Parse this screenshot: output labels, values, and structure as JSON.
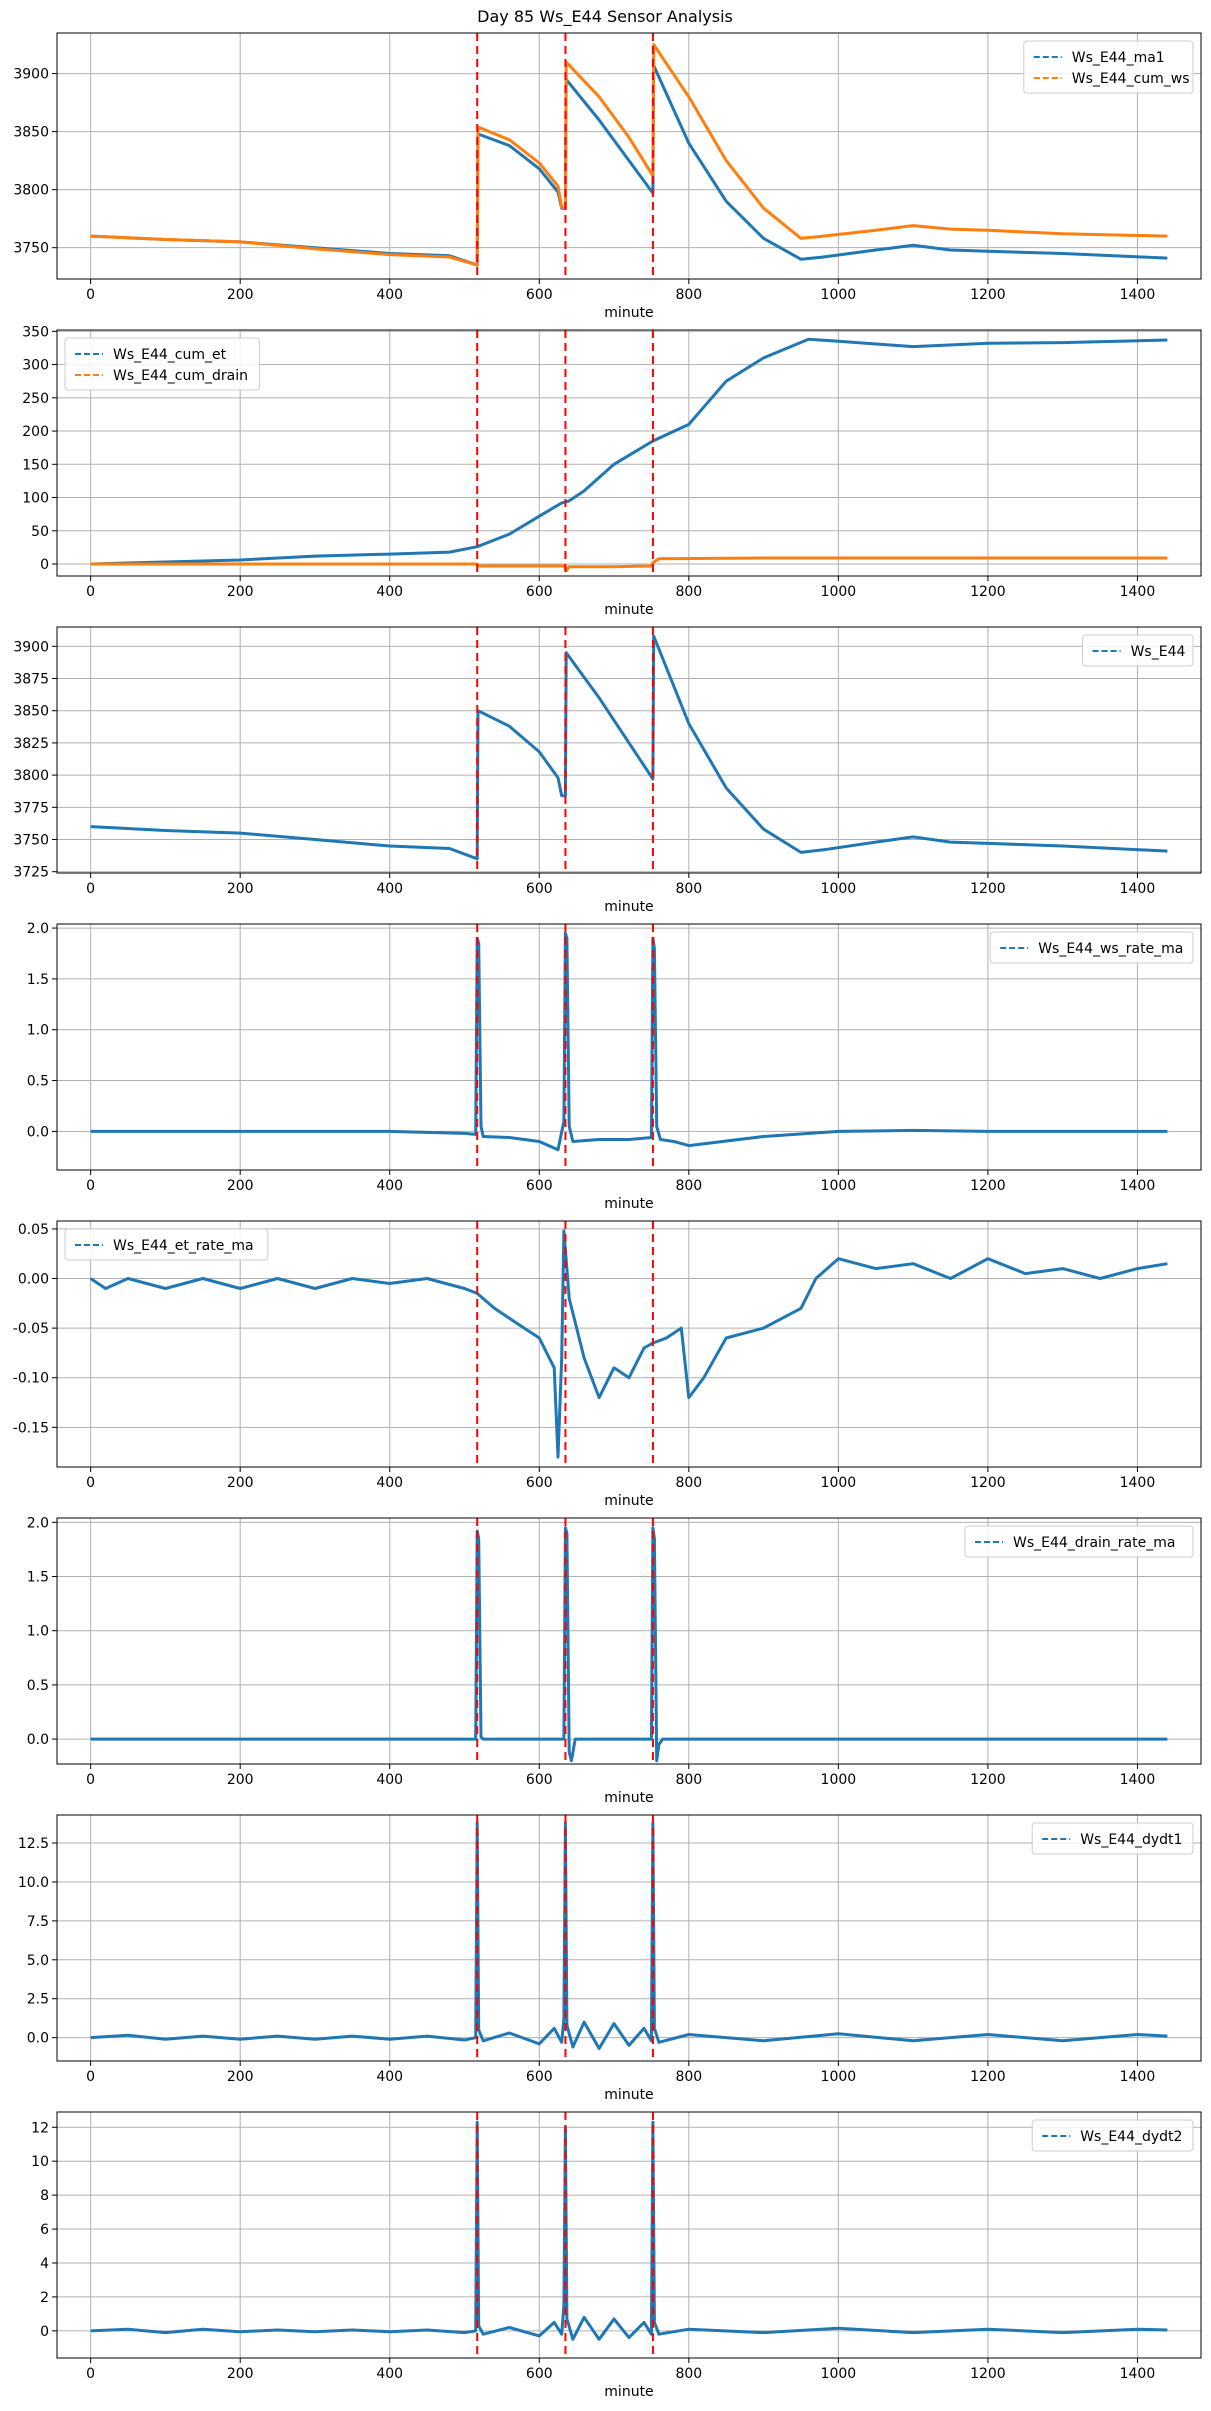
{
  "figure_title": "Day 85 Ws_E44 Sensor Analysis",
  "colors": {
    "blue": "#1f77b4",
    "orange": "#ff7f0e",
    "event": "#ff0000",
    "grid": "#b0b0b0"
  },
  "chart_data": [
    {
      "type": "line",
      "xlabel": "minute",
      "xlim": [
        -45,
        1485
      ],
      "ylim": [
        3723,
        3935
      ],
      "xticks": [
        0,
        200,
        400,
        600,
        800,
        1000,
        1200,
        1400
      ],
      "yticks": [
        3750,
        3800,
        3850,
        3900
      ],
      "legend_loc": "top-right",
      "event_lines": [
        517,
        635,
        752
      ],
      "series": [
        {
          "name": "Ws_E44_ma1",
          "color": "#1f77b4",
          "x": [
            0,
            100,
            200,
            300,
            400,
            480,
            517,
            518,
            560,
            600,
            625,
            630,
            635,
            636,
            680,
            720,
            752,
            753,
            800,
            850,
            900,
            950,
            980,
            1050,
            1100,
            1150,
            1200,
            1300,
            1440
          ],
          "y": [
            3760,
            3757,
            3755,
            3750,
            3745,
            3743,
            3735,
            3848,
            3838,
            3818,
            3798,
            3784,
            3784,
            3895,
            3860,
            3825,
            3797,
            3907,
            3840,
            3790,
            3758,
            3740,
            3742,
            3748,
            3752,
            3748,
            3747,
            3745,
            3741
          ]
        },
        {
          "name": "Ws_E44_cum_ws",
          "color": "#ff7f0e",
          "x": [
            0,
            100,
            200,
            300,
            400,
            480,
            517,
            518,
            560,
            600,
            625,
            630,
            635,
            636,
            680,
            720,
            752,
            753,
            800,
            850,
            900,
            950,
            980,
            1050,
            1100,
            1150,
            1200,
            1300,
            1440
          ],
          "y": [
            3760,
            3757,
            3755,
            3749,
            3744,
            3742,
            3735,
            3854,
            3843,
            3823,
            3803,
            3785,
            3784,
            3910,
            3880,
            3845,
            3812,
            3925,
            3880,
            3825,
            3784,
            3758,
            3760,
            3765,
            3769,
            3766,
            3765,
            3762,
            3760
          ]
        }
      ]
    },
    {
      "type": "line",
      "xlabel": "minute",
      "xlim": [
        -45,
        1485
      ],
      "ylim": [
        -18,
        352
      ],
      "xticks": [
        0,
        200,
        400,
        600,
        800,
        1000,
        1200,
        1400
      ],
      "yticks": [
        0,
        50,
        100,
        150,
        200,
        250,
        300,
        350
      ],
      "legend_loc": "top-left",
      "event_lines": [
        517,
        635,
        752
      ],
      "series": [
        {
          "name": "Ws_E44_cum_et",
          "color": "#1f77b4",
          "x": [
            0,
            100,
            200,
            300,
            400,
            480,
            517,
            560,
            600,
            630,
            640,
            660,
            700,
            752,
            800,
            850,
            900,
            960,
            1000,
            1100,
            1200,
            1300,
            1440
          ],
          "y": [
            0,
            3,
            6,
            12,
            15,
            18,
            26,
            45,
            72,
            92,
            95,
            110,
            150,
            185,
            210,
            275,
            310,
            338,
            335,
            327,
            332,
            333,
            337
          ]
        },
        {
          "name": "Ws_E44_cum_drain",
          "color": "#ff7f0e",
          "x": [
            0,
            100,
            200,
            300,
            400,
            500,
            517,
            518,
            600,
            634,
            636,
            640,
            700,
            750,
            752,
            760,
            900,
            1100,
            1440
          ],
          "y": [
            0,
            0,
            0,
            0,
            0,
            0,
            0,
            -3,
            -3,
            -3,
            -10,
            -4,
            -4,
            -3,
            2,
            8,
            9,
            9,
            9
          ]
        }
      ]
    },
    {
      "type": "line",
      "xlabel": "minute",
      "xlim": [
        -45,
        1485
      ],
      "ylim": [
        3724,
        3915
      ],
      "xticks": [
        0,
        200,
        400,
        600,
        800,
        1000,
        1200,
        1400
      ],
      "yticks": [
        3725,
        3750,
        3775,
        3800,
        3825,
        3850,
        3875,
        3900
      ],
      "legend_loc": "top-right",
      "event_lines": [
        517,
        635,
        752
      ],
      "series": [
        {
          "name": "Ws_E44",
          "color": "#1f77b4",
          "x": [
            0,
            100,
            200,
            300,
            400,
            480,
            517,
            518,
            560,
            600,
            625,
            630,
            635,
            636,
            680,
            720,
            752,
            753,
            800,
            850,
            900,
            950,
            980,
            1050,
            1100,
            1150,
            1200,
            1300,
            1440
          ],
          "y": [
            3760,
            3757,
            3755,
            3750,
            3745,
            3743,
            3735,
            3850,
            3838,
            3818,
            3798,
            3784,
            3784,
            3895,
            3860,
            3825,
            3797,
            3908,
            3840,
            3790,
            3758,
            3740,
            3742,
            3748,
            3752,
            3748,
            3747,
            3745,
            3741
          ]
        }
      ]
    },
    {
      "type": "line",
      "xlabel": "minute",
      "xlim": [
        -45,
        1485
      ],
      "ylim": [
        -0.38,
        2.04
      ],
      "xticks": [
        0,
        200,
        400,
        600,
        800,
        1000,
        1200,
        1400
      ],
      "yticks": [
        0.0,
        0.5,
        1.0,
        1.5,
        2.0
      ],
      "ytick_labels": [
        "0.0",
        "0.5",
        "1.0",
        "1.5",
        "2.0"
      ],
      "legend_loc": "top-right",
      "event_lines": [
        517,
        635,
        752
      ],
      "series": [
        {
          "name": "Ws_E44_ws_rate_ma",
          "color": "#1f77b4",
          "x": [
            0,
            100,
            200,
            300,
            400,
            500,
            515,
            517,
            519,
            522,
            525,
            560,
            600,
            625,
            633,
            635,
            637,
            640,
            645,
            680,
            720,
            750,
            752,
            754,
            757,
            762,
            780,
            800,
            900,
            1000,
            1100,
            1200,
            1300,
            1440
          ],
          "y": [
            0,
            0,
            0,
            0,
            0,
            -0.02,
            -0.03,
            1.9,
            1.85,
            0.05,
            -0.05,
            -0.06,
            -0.1,
            -0.18,
            0.1,
            1.95,
            1.9,
            0.05,
            -0.1,
            -0.08,
            -0.08,
            -0.06,
            1.9,
            1.8,
            0.05,
            -0.08,
            -0.1,
            -0.14,
            -0.05,
            0.0,
            0.01,
            0.0,
            0.0,
            0.0
          ]
        }
      ]
    },
    {
      "type": "line",
      "xlabel": "minute",
      "xlim": [
        -45,
        1485
      ],
      "ylim": [
        -0.19,
        0.058
      ],
      "xticks": [
        0,
        200,
        400,
        600,
        800,
        1000,
        1200,
        1400
      ],
      "yticks": [
        -0.15,
        -0.1,
        -0.05,
        0.0,
        0.05
      ],
      "ytick_labels": [
        "-0.15",
        "-0.10",
        "-0.05",
        "0.00",
        "0.05"
      ],
      "legend_loc": "top-left",
      "event_lines": [
        517,
        635,
        752
      ],
      "series": [
        {
          "name": "Ws_E44_et_rate_ma",
          "color": "#1f77b4",
          "x": [
            0,
            20,
            50,
            100,
            150,
            200,
            250,
            300,
            350,
            400,
            450,
            500,
            517,
            540,
            570,
            600,
            620,
            625,
            630,
            633,
            640,
            660,
            680,
            700,
            720,
            740,
            752,
            770,
            790,
            800,
            820,
            850,
            900,
            950,
            970,
            1000,
            1050,
            1100,
            1150,
            1200,
            1250,
            1300,
            1350,
            1400,
            1440
          ],
          "y": [
            0,
            -0.01,
            0,
            -0.01,
            0,
            -0.01,
            0,
            -0.01,
            0,
            -0.005,
            0,
            -0.01,
            -0.015,
            -0.03,
            -0.045,
            -0.06,
            -0.09,
            -0.18,
            -0.08,
            0.048,
            -0.02,
            -0.08,
            -0.12,
            -0.09,
            -0.1,
            -0.07,
            -0.065,
            -0.06,
            -0.05,
            -0.12,
            -0.1,
            -0.06,
            -0.05,
            -0.03,
            0.0,
            0.02,
            0.01,
            0.015,
            0.0,
            0.02,
            0.005,
            0.01,
            0.0,
            0.01,
            0.015
          ]
        }
      ]
    },
    {
      "type": "line",
      "xlabel": "minute",
      "xlim": [
        -45,
        1485
      ],
      "ylim": [
        -0.23,
        2.04
      ],
      "xticks": [
        0,
        200,
        400,
        600,
        800,
        1000,
        1200,
        1400
      ],
      "yticks": [
        0.0,
        0.5,
        1.0,
        1.5,
        2.0
      ],
      "ytick_labels": [
        "0.0",
        "0.5",
        "1.0",
        "1.5",
        "2.0"
      ],
      "legend_loc": "top-right",
      "event_lines": [
        517,
        635,
        752
      ],
      "series": [
        {
          "name": "Ws_E44_drain_rate_ma",
          "color": "#1f77b4",
          "x": [
            0,
            100,
            200,
            300,
            400,
            500,
            515,
            517,
            519,
            522,
            525,
            540,
            630,
            633,
            635,
            637,
            640,
            643,
            648,
            700,
            750,
            752,
            754,
            757,
            760,
            765,
            800,
            1000,
            1200,
            1440
          ],
          "y": [
            0,
            0,
            0,
            0,
            0,
            0,
            0,
            1.92,
            1.85,
            0.02,
            0,
            0,
            0,
            0,
            1.95,
            1.9,
            -0.12,
            -0.2,
            0,
            0,
            0,
            1.95,
            1.85,
            -0.2,
            -0.05,
            0,
            0,
            0,
            0,
            0
          ]
        }
      ]
    },
    {
      "type": "line",
      "xlabel": "minute",
      "xlim": [
        -45,
        1485
      ],
      "ylim": [
        -1.5,
        14.3
      ],
      "xticks": [
        0,
        200,
        400,
        600,
        800,
        1000,
        1200,
        1400
      ],
      "yticks": [
        0.0,
        2.5,
        5.0,
        7.5,
        10.0,
        12.5
      ],
      "ytick_labels": [
        "0.0",
        "2.5",
        "5.0",
        "7.5",
        "10.0",
        "12.5"
      ],
      "legend_loc": "top-right",
      "event_lines": [
        517,
        635,
        752
      ],
      "series": [
        {
          "name": "Ws_E44_dydt1",
          "color": "#1f77b4",
          "x": [
            0,
            50,
            100,
            150,
            200,
            250,
            300,
            350,
            400,
            450,
            500,
            515,
            517,
            519,
            525,
            560,
            600,
            620,
            630,
            633,
            635,
            637,
            645,
            660,
            680,
            700,
            720,
            740,
            750,
            752,
            754,
            760,
            800,
            900,
            1000,
            1100,
            1200,
            1300,
            1400,
            1440
          ],
          "y": [
            0,
            0.15,
            -0.1,
            0.1,
            -0.1,
            0.1,
            -0.1,
            0.1,
            -0.1,
            0.1,
            -0.15,
            0,
            13.8,
            0.5,
            -0.2,
            0.3,
            -0.4,
            0.6,
            -0.3,
            1.2,
            13.8,
            0.8,
            -0.6,
            1.0,
            -0.7,
            0.9,
            -0.5,
            0.6,
            -0.2,
            13.8,
            0.6,
            -0.3,
            0.2,
            -0.2,
            0.25,
            -0.2,
            0.2,
            -0.2,
            0.2,
            0.1
          ]
        }
      ]
    },
    {
      "type": "line",
      "xlabel": "minute",
      "xlim": [
        -45,
        1485
      ],
      "ylim": [
        -1.6,
        12.9
      ],
      "xticks": [
        0,
        200,
        400,
        600,
        800,
        1000,
        1200,
        1400
      ],
      "yticks": [
        0,
        2,
        4,
        6,
        8,
        10,
        12
      ],
      "legend_loc": "top-right",
      "event_lines": [
        517,
        635,
        752
      ],
      "series": [
        {
          "name": "Ws_E44_dydt2",
          "color": "#1f77b4",
          "x": [
            0,
            50,
            100,
            150,
            200,
            250,
            300,
            350,
            400,
            450,
            500,
            515,
            517,
            519,
            525,
            560,
            600,
            620,
            630,
            633,
            635,
            637,
            645,
            660,
            680,
            700,
            720,
            740,
            750,
            752,
            754,
            760,
            800,
            900,
            1000,
            1100,
            1200,
            1300,
            1400,
            1440
          ],
          "y": [
            0,
            0.1,
            -0.1,
            0.1,
            -0.05,
            0.05,
            -0.05,
            0.05,
            -0.05,
            0.05,
            -0.1,
            0,
            12.3,
            0.3,
            -0.2,
            0.2,
            -0.3,
            0.5,
            -0.2,
            1.5,
            12.0,
            0.7,
            -0.5,
            0.8,
            -0.5,
            0.7,
            -0.4,
            0.5,
            -0.2,
            12.3,
            0.5,
            -0.2,
            0.1,
            -0.1,
            0.15,
            -0.1,
            0.1,
            -0.1,
            0.1,
            0.05
          ]
        }
      ]
    }
  ]
}
